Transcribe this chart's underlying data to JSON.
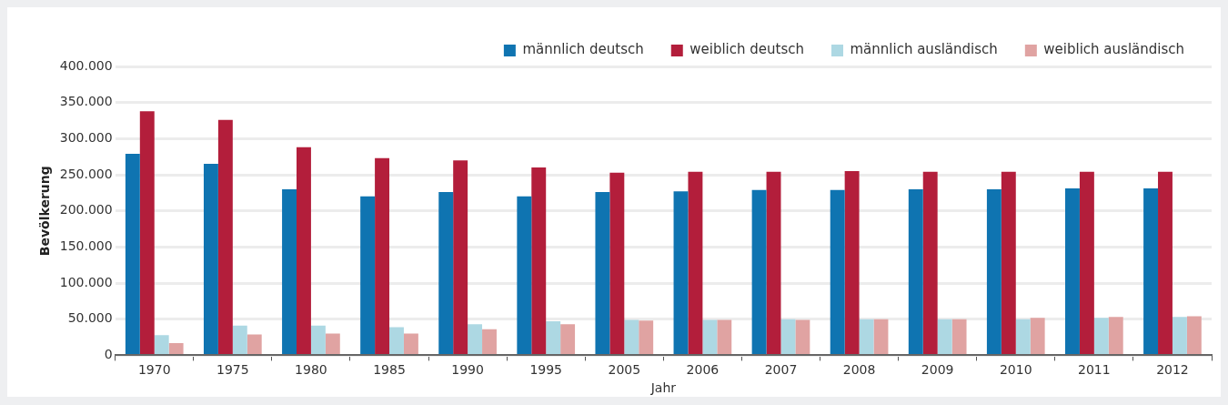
{
  "chart_data": {
    "type": "bar",
    "xlabel": "Jahr",
    "ylabel": "Bevölkerung",
    "categories": [
      "1970",
      "1975",
      "1980",
      "1985",
      "1990",
      "1995",
      "2005",
      "2006",
      "2007",
      "2008",
      "2009",
      "2010",
      "2011",
      "2012"
    ],
    "series": [
      {
        "name": "männlich deutsch",
        "color": "#0f74b1",
        "values": [
          279000,
          265000,
          230000,
          220000,
          226000,
          220000,
          226000,
          227000,
          229000,
          229000,
          230000,
          230000,
          231000,
          231000
        ]
      },
      {
        "name": "weiblich deutsch",
        "color": "#b31e3b",
        "values": [
          338000,
          326000,
          288000,
          273000,
          270000,
          260000,
          253000,
          254000,
          254000,
          255000,
          254000,
          254000,
          254000,
          254000
        ]
      },
      {
        "name": "männlich ausländisch",
        "color": "#add8e3",
        "values": [
          28000,
          41000,
          41000,
          39000,
          43000,
          47000,
          49000,
          49000,
          50000,
          50000,
          50000,
          50000,
          52000,
          53000
        ]
      },
      {
        "name": "weiblich ausländisch",
        "color": "#e0a3a2",
        "values": [
          17000,
          29000,
          30000,
          30000,
          36000,
          43000,
          48000,
          49000,
          49000,
          50000,
          50000,
          52000,
          53000,
          54000
        ]
      }
    ],
    "ylim": [
      0,
      400000
    ],
    "yticks": [
      {
        "value": 0,
        "label": "0"
      },
      {
        "value": 50000,
        "label": "50.000"
      },
      {
        "value": 100000,
        "label": "100.000"
      },
      {
        "value": 150000,
        "label": "150.000"
      },
      {
        "value": 200000,
        "label": "200.000"
      },
      {
        "value": 250000,
        "label": "250.000"
      },
      {
        "value": 300000,
        "label": "300.000"
      },
      {
        "value": 350000,
        "label": "350.000"
      },
      {
        "value": 400000,
        "label": "400.000"
      }
    ],
    "grid": "y",
    "legend": "top right"
  }
}
